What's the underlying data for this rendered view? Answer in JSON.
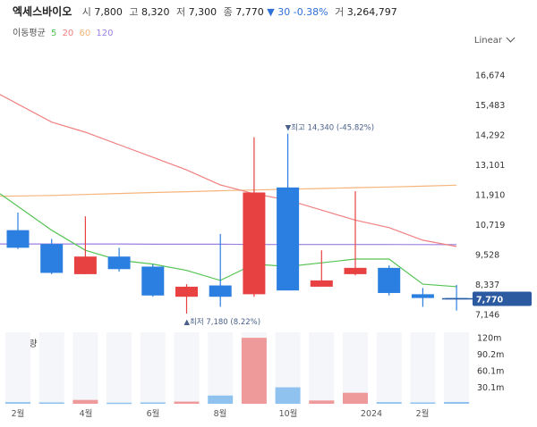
{
  "header": {
    "name": "엑세스바이오",
    "open_label": "시",
    "open": "7,800",
    "high_label": "고",
    "high": "8,320",
    "low_label": "저",
    "low": "7,300",
    "close_label": "종",
    "close": "7,770",
    "change_arrow": "▼",
    "change": "30",
    "change_pct": "-0.38%",
    "volume_label": "거",
    "volume": "3,264,797"
  },
  "ma_legend": {
    "label": "이동평균",
    "periods": [
      {
        "value": "5",
        "color": "#55c455"
      },
      {
        "value": "20",
        "color": "#f08080"
      },
      {
        "value": "60",
        "color": "#f5b47a"
      },
      {
        "value": "120",
        "color": "#9b7fe0"
      }
    ]
  },
  "scale_button": {
    "label": "Linear"
  },
  "volume_panel": {
    "title": "거래량"
  },
  "colors": {
    "up": "#e84142",
    "down": "#2b7fe0",
    "ma5": "#55c455",
    "ma20": "#f08080",
    "ma60": "#f5b47a",
    "ma120": "#9b7fe0"
  },
  "chart_data": {
    "type": "candlestick",
    "price_ticks": [
      "16,674",
      "15,483",
      "14,292",
      "13,101",
      "11,910",
      "10,719",
      "9,528",
      "8,337",
      "7,146"
    ],
    "price_ylim": [
      7146,
      16674
    ],
    "candles": [
      {
        "open": 10500,
        "close": 9800,
        "high": 11200,
        "low": 9750
      },
      {
        "open": 9950,
        "close": 8800,
        "high": 10150,
        "low": 8750
      },
      {
        "open": 8750,
        "close": 9450,
        "high": 11050,
        "low": 8750
      },
      {
        "open": 9450,
        "close": 8950,
        "high": 9800,
        "low": 8850
      },
      {
        "open": 9050,
        "close": 7900,
        "high": 9150,
        "low": 7850
      },
      {
        "open": 7850,
        "close": 8250,
        "high": 8350,
        "low": 7180
      },
      {
        "open": 8300,
        "close": 7850,
        "high": 10350,
        "low": 7450
      },
      {
        "open": 7950,
        "close": 12000,
        "high": 14200,
        "low": 7850
      },
      {
        "open": 12200,
        "close": 8100,
        "high": 14340,
        "low": 8100
      },
      {
        "open": 8250,
        "close": 8500,
        "high": 9700,
        "low": 8250
      },
      {
        "open": 8750,
        "close": 9000,
        "high": 12050,
        "low": 8700
      },
      {
        "open": 9000,
        "close": 8000,
        "high": 9100,
        "low": 7900
      },
      {
        "open": 7950,
        "close": 7800,
        "high": 8200,
        "low": 7450
      },
      {
        "open": 7800,
        "close": 7770,
        "high": 8320,
        "low": 7300
      }
    ],
    "ma5": [
      11950,
      10500,
      9700,
      9300,
      9150,
      8900,
      8500,
      9150,
      9050,
      9200,
      9350,
      9350,
      8350,
      8250
    ],
    "ma20": [
      15900,
      14800,
      14400,
      13900,
      13400,
      12900,
      12300,
      11950,
      11700,
      11300,
      10900,
      10600,
      10100,
      9850
    ],
    "ma60": [
      11850,
      11880,
      11920,
      11960,
      12000,
      12030,
      12070,
      12100,
      12130,
      12160,
      12190,
      12220,
      12250,
      12290
    ],
    "ma120": [
      9950,
      9950,
      9950,
      9950,
      9940,
      9940,
      9940,
      9930,
      9930,
      9930,
      9930,
      9930,
      9925,
      9925
    ],
    "high_annotation": "▼최고 14,340 (-45.82%)",
    "low_annotation": "▲최저 7,180 (8.22%)",
    "current_price": "7,770",
    "volume_ticks": [
      "120m",
      "90.2m",
      "60.1m",
      "30.1m"
    ],
    "volume_ylim": [
      0,
      130000000
    ],
    "volumes": [
      3000000,
      2500000,
      7000000,
      2000000,
      2500000,
      4000000,
      15000000,
      120000000,
      30000000,
      6000000,
      20000000,
      3000000,
      2500000,
      3264797
    ],
    "x_labels": [
      "2월",
      "4월",
      "6월",
      "8월",
      "10월",
      "2024",
      "2월"
    ]
  }
}
